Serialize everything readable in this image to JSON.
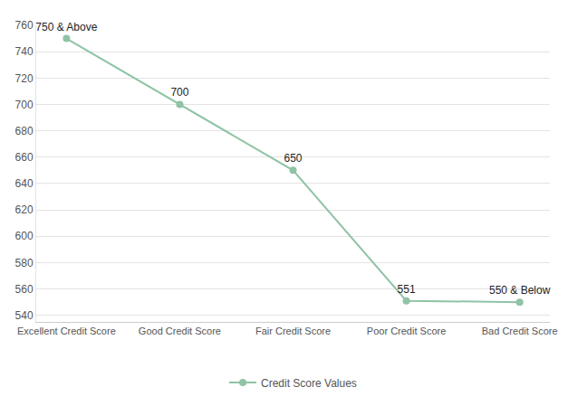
{
  "chart_data": {
    "type": "line",
    "categories": [
      "Excellent Credit Score",
      "Good Credit Score",
      "Fair Credit Score",
      "Poor Credit Score",
      "Bad Credit Score"
    ],
    "series": [
      {
        "name": "Credit Score Values",
        "color": "#8fc3a5",
        "values": [
          750,
          700,
          650,
          551,
          550
        ],
        "value_labels": [
          "750 & Above",
          "700",
          "650",
          "551",
          "550 & Below"
        ]
      }
    ],
    "ylim": [
      535,
      760
    ],
    "yticks": [
      540,
      560,
      580,
      600,
      620,
      640,
      660,
      680,
      700,
      720,
      740,
      760
    ],
    "grid": true,
    "data_labels": true,
    "legend": "bottom",
    "marker": "circle"
  }
}
